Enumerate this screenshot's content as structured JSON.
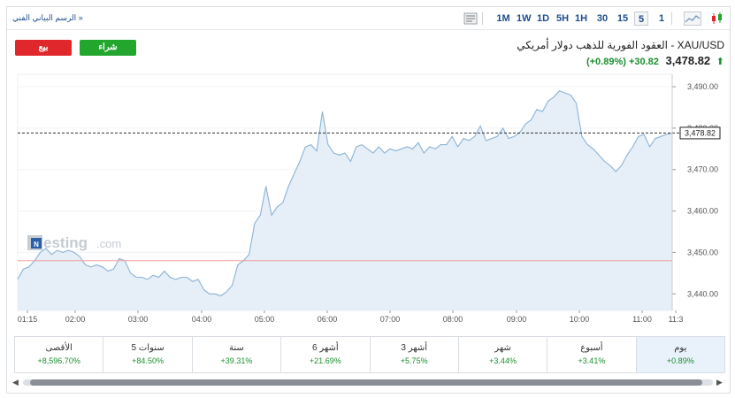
{
  "toolbar": {
    "tech_link": "الرسم البياني الفني »",
    "intervals": [
      "1M",
      "1W",
      "1D",
      "5H",
      "1H",
      "30",
      "15",
      "5",
      "1"
    ],
    "active_interval": "5"
  },
  "instrument": {
    "title": "XAU/USD - العقود الفورية للذهب دولار أمريكي",
    "price": "3,478.82",
    "change_abs": "+30.82",
    "change_pct": "(+0.89%)",
    "direction": "up"
  },
  "buttons": {
    "sell": "بيع",
    "buy": "شراء"
  },
  "watermark": {
    "badge": "N",
    "text": "esting",
    "suffix": ".com"
  },
  "chart_data": {
    "type": "area",
    "x_ticks": [
      "01:15",
      "02:00",
      "03:00",
      "04:00",
      "05:00",
      "06:00",
      "07:00",
      "08:00",
      "09:00",
      "10:00",
      "11:00",
      "11:3"
    ],
    "y_ticks": [
      "3,490.00",
      "3,480.00",
      "3,470.00",
      "3,460.00",
      "3,450.00",
      "3,440.00"
    ],
    "ylim": [
      3436,
      3493
    ],
    "current_price_label": "3,478.82",
    "current_price": 3478.82,
    "reference_price": 3448.0,
    "values": [
      3443.5,
      3446,
      3446.5,
      3448,
      3450,
      3451,
      3449.5,
      3450.5,
      3450,
      3450.5,
      3450,
      3449,
      3447,
      3446.5,
      3447,
      3446.5,
      3445.5,
      3446,
      3448.5,
      3448,
      3445,
      3444,
      3444,
      3443.5,
      3444.5,
      3444,
      3445.5,
      3444,
      3443.5,
      3444,
      3444,
      3443,
      3443.5,
      3441,
      3440,
      3440,
      3439.5,
      3440.5,
      3442,
      3447,
      3448,
      3449.5,
      3457,
      3459,
      3466,
      3459,
      3461,
      3462,
      3466,
      3469,
      3472,
      3475.5,
      3476,
      3474.5,
      3484,
      3476,
      3474,
      3473.5,
      3474,
      3472,
      3475.5,
      3476,
      3475,
      3474,
      3475.5,
      3474,
      3475,
      3474.5,
      3475,
      3475.5,
      3475,
      3476.5,
      3474,
      3475.5,
      3475,
      3476,
      3476,
      3478,
      3475.5,
      3477.5,
      3477,
      3478,
      3480.5,
      3477,
      3477.5,
      3478,
      3480,
      3477.5,
      3478,
      3479,
      3481,
      3482,
      3484.5,
      3484,
      3486.5,
      3487.5,
      3489,
      3488.5,
      3488,
      3486,
      3478,
      3476,
      3475,
      3473.5,
      3472,
      3471,
      3469.5,
      3471,
      3473.5,
      3475.5,
      3478,
      3478.5,
      3475.5,
      3477.5,
      3478,
      3478.5,
      3478.8
    ]
  },
  "performance": [
    {
      "label": "يوم",
      "value": "+0.89%"
    },
    {
      "label": "أسبوع",
      "value": "+3.41%"
    },
    {
      "label": "شهر",
      "value": "+3.44%"
    },
    {
      "label": "3 أشهر",
      "value": "+5.75%"
    },
    {
      "label": "6 أشهر",
      "value": "+21.69%"
    },
    {
      "label": "سنة",
      "value": "+39.31%"
    },
    {
      "label": "5 سنوات",
      "value": "+84.50%"
    },
    {
      "label": "الأقصى",
      "value": "+8,596.70%"
    }
  ],
  "colors": {
    "line": "#8bb3d6",
    "fill": "#e6eef7",
    "up": "#1a8f2e",
    "sell": "#e0272b",
    "buy": "#22a62e",
    "reference": "#f0a0a0"
  }
}
